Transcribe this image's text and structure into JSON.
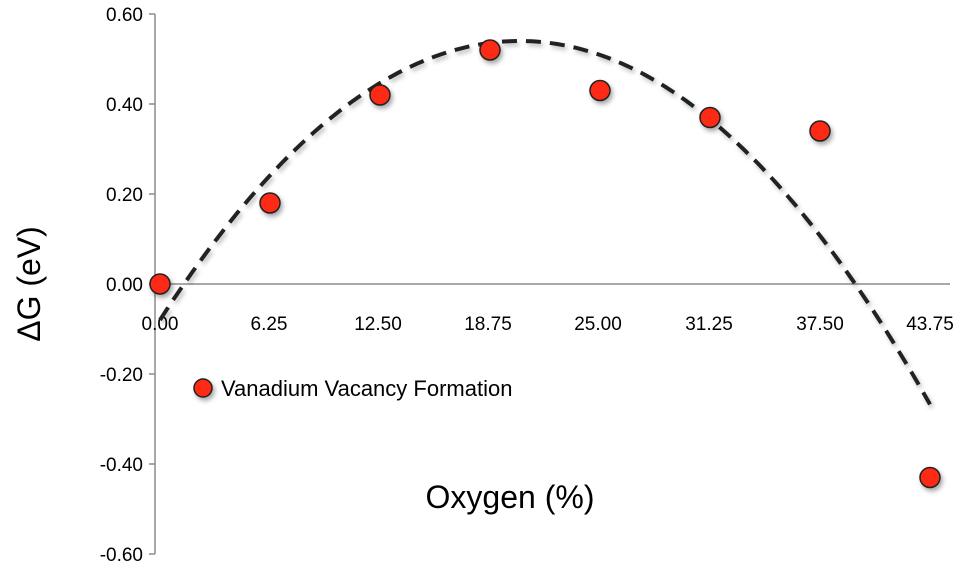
{
  "chart_data": {
    "type": "scatter",
    "title": "",
    "xlabel": "Oxygen (%)",
    "ylabel": "ΔG (eV)",
    "categories": [
      "0.00",
      "6.25",
      "12.50",
      "18.75",
      "25.00",
      "31.25",
      "37.50",
      "43.75"
    ],
    "ylim": [
      -0.6,
      0.6
    ],
    "y_ticks": [
      "0.60",
      "0.40",
      "0.20",
      "0.00",
      "-0.20",
      "-0.40",
      "-0.60"
    ],
    "series": [
      {
        "name": "Vanadium Vacancy Formation",
        "x": [
          0,
          6.25,
          12.5,
          18.75,
          25,
          31.25,
          37.5,
          43.75
        ],
        "values": [
          0.0,
          0.18,
          0.42,
          0.52,
          0.43,
          0.37,
          0.34,
          -0.43
        ],
        "marker_color": "#ff2a12"
      }
    ],
    "trendline": {
      "style": "dashed",
      "order": 2,
      "x_range": [
        0,
        43.75
      ],
      "points": [
        [
          0,
          -0.08
        ],
        [
          20.3,
          0.54
        ],
        [
          39.5,
          0.0
        ],
        [
          43.75,
          -0.28
        ]
      ]
    },
    "grid": false,
    "legend": "inside-left"
  }
}
